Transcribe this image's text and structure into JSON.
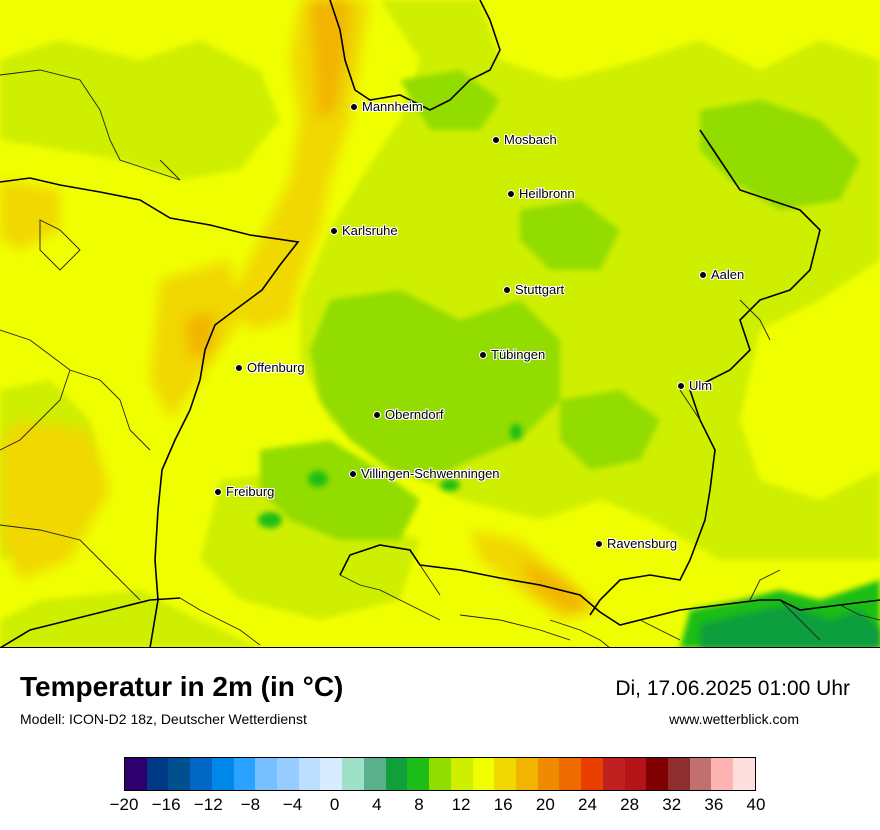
{
  "title": "Temperatur in 2m (in °C)",
  "subtitle": "Modell: ICON-D2 18z, Deutscher Wetterdienst",
  "datetime": "Di, 17.06.2025 01:00 Uhr",
  "website": "www.wetterblick.com",
  "cities": [
    {
      "name": "Mannheim"
    },
    {
      "name": "Mosbach"
    },
    {
      "name": "Heilbronn"
    },
    {
      "name": "Karlsruhe"
    },
    {
      "name": "Aalen"
    },
    {
      "name": "Stuttgart"
    },
    {
      "name": "Tübingen"
    },
    {
      "name": "Offenburg"
    },
    {
      "name": "Ulm"
    },
    {
      "name": "Oberndorf"
    },
    {
      "name": "Villingen-Schwenningen"
    },
    {
      "name": "Freiburg"
    },
    {
      "name": "Ravensburg"
    }
  ],
  "legend": {
    "colors": [
      "#2d006e",
      "#003a86",
      "#004f8e",
      "#0068c4",
      "#0088e8",
      "#2aa2ff",
      "#78bfff",
      "#96ccff",
      "#bcdfff",
      "#d8ecff",
      "#9ee0c8",
      "#5ab08c",
      "#119f3c",
      "#1bbd16",
      "#93dc00",
      "#cfef00",
      "#f0ff00",
      "#f0d800",
      "#f2b400",
      "#f08a00",
      "#ee6b00",
      "#e83e00",
      "#c02020",
      "#b21418",
      "#7e0000",
      "#8e2e2e",
      "#c07070",
      "#ffb4b4",
      "#ffdede"
    ],
    "tick_labels": [
      "−20",
      "−16",
      "−12",
      "−8",
      "−4",
      "0",
      "4",
      "8",
      "12",
      "16",
      "20",
      "24",
      "28",
      "32",
      "36",
      "40"
    ]
  }
}
